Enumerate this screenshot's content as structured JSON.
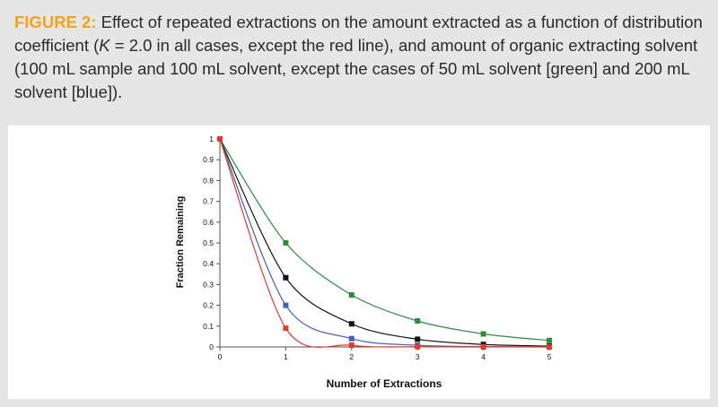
{
  "caption": {
    "label": "FIGURE 2:",
    "text_part1": " Effect of repeated extractions on the amount extracted as a function of distribution coefficient (",
    "k_symbol": "K",
    "text_part2": " = 2.0 in all cases, except the red line), and amount of organic extracting solvent (100 mL sample and 100 mL solvent, except the cases of 50 mL solvent [green] and 200 mL solvent [blue])."
  },
  "chart_data": {
    "type": "line",
    "title": "",
    "xlabel": "Number of Extractions",
    "ylabel": "Fraction Remaining",
    "xlim": [
      0,
      5
    ],
    "ylim": [
      0,
      1
    ],
    "x_ticks": [
      "0",
      "1",
      "2",
      "3",
      "4",
      "5"
    ],
    "y_ticks": [
      "0",
      "0.1",
      "0.2",
      "0.3",
      "0.4",
      "0.5",
      "0.6",
      "0.7",
      "0.8",
      "0.9",
      "1"
    ],
    "x": [
      0,
      1,
      2,
      3,
      4,
      5
    ],
    "series": [
      {
        "name": "green",
        "color": "#2e8b3e",
        "values": [
          1,
          0.5,
          0.25,
          0.125,
          0.0625,
          0.03125
        ]
      },
      {
        "name": "black",
        "color": "#111111",
        "values": [
          1,
          0.333,
          0.111,
          0.037,
          0.012,
          0.004
        ]
      },
      {
        "name": "blue",
        "color": "#4a62b0",
        "values": [
          1,
          0.2,
          0.04,
          0.008,
          0.0016,
          0.0003
        ]
      },
      {
        "name": "red",
        "color": "#e03a2f",
        "values": [
          1,
          0.09,
          0.008,
          0.001,
          0.0001,
          0.0
        ]
      }
    ]
  }
}
